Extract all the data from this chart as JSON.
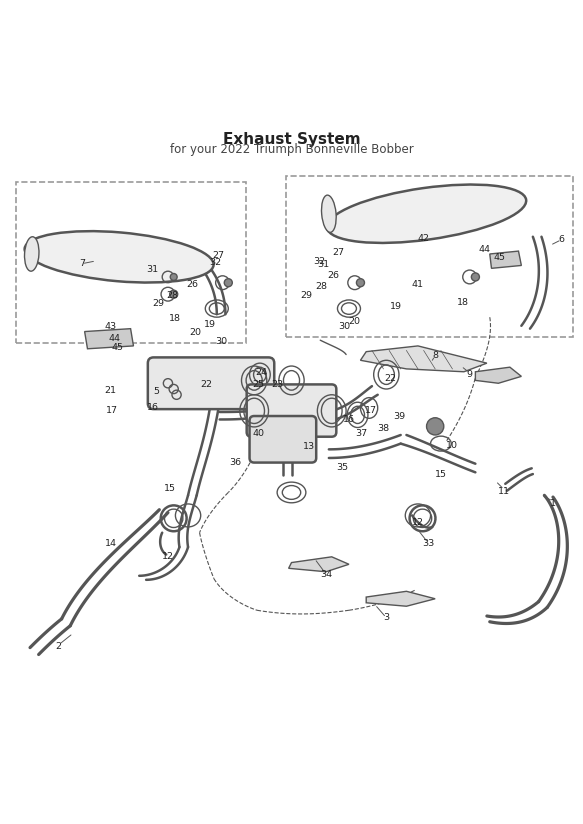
{
  "title": "Exhaust System",
  "subtitle": "for your 2022 Triumph Bonneville Bobber",
  "bg_color": "#ffffff",
  "line_color": "#555555",
  "text_color": "#333333",
  "dashed_box_color": "#888888"
}
